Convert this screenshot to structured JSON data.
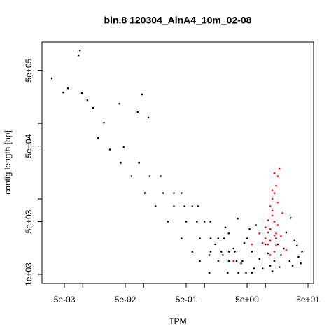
{
  "chart_data": {
    "type": "scatter",
    "title": "bin.8 120304_AlnA4_10m_02-08",
    "x_label": "TPM",
    "y_label": "contig length [bp]",
    "log_x": true,
    "log_y": true,
    "xlim": [
      0.00214,
      61.8
    ],
    "ylim": [
      758,
      1190000
    ],
    "xticks": [
      {
        "value": 0.005,
        "label": "5e-03"
      },
      {
        "value": 0.05,
        "label": "5e-02"
      },
      {
        "value": 0.5,
        "label": "5e-01"
      },
      {
        "value": 5,
        "label": "5e+00"
      },
      {
        "value": 50,
        "label": "5e+01"
      }
    ],
    "xminor_ticks": [
      0.01,
      0.1,
      1,
      10
    ],
    "yticks": [
      {
        "value": 1000,
        "label": "1e+03"
      },
      {
        "value": 5000,
        "label": "5e+03"
      },
      {
        "value": 50000,
        "label": "5e+04"
      },
      {
        "value": 500000,
        "label": "5e+05"
      }
    ],
    "yminor_ticks": [
      10000,
      100000
    ],
    "series": [
      {
        "color": "#000000",
        "x": [
          0.0031,
          0.009,
          0.0085,
          0.0057,
          0.0048,
          0.0097,
          0.0119,
          0.0148,
          0.0223,
          0.04,
          0.094,
          0.12,
          0.08,
          0.0179,
          0.047,
          1.2,
          0.84,
          0.63,
          0.42,
          0.25,
          0.157,
          0.105,
          0.063,
          0.042,
          0.028,
          2.4,
          1.68,
          1.26,
          0.84,
          0.5,
          0.314,
          0.21,
          0.126,
          0.084,
          3.6,
          2.52,
          1.89,
          1.26,
          0.75,
          0.47,
          0.315,
          0.19,
          4.8,
          3.36,
          2.52,
          1.68,
          1.0,
          0.63,
          0.42,
          6.0,
          4.2,
          3.15,
          2.1,
          1.25,
          0.785,
          1.5,
          2,
          2.5,
          3,
          4,
          5,
          6,
          7,
          8,
          10,
          12,
          15,
          18,
          20,
          25,
          30,
          35,
          40,
          3.5,
          2.2,
          9,
          14,
          16,
          22,
          28,
          1.2,
          4.5,
          6.5,
          11,
          33,
          38,
          5.5,
          26,
          13,
          17
        ],
        "y": [
          392000,
          918000,
          790000,
          290000,
          255000,
          250000,
          202000,
          160000,
          102000,
          181000,
          240000,
          119000,
          141000,
          64000,
          48400,
          1050,
          1500,
          2000,
          3000,
          5000,
          8000,
          12000,
          20000,
          30000,
          45000,
          1050,
          1500,
          2000,
          3000,
          5000,
          8000,
          12000,
          20000,
          30000,
          1050,
          1500,
          2000,
          3000,
          5000,
          8000,
          12000,
          20000,
          1050,
          1500,
          2000,
          3000,
          5000,
          8000,
          12000,
          1050,
          1500,
          2000,
          3000,
          5000,
          8000,
          2500,
          1800,
          3500,
          2200,
          1400,
          3000,
          2000,
          4500,
          1600,
          2500,
          1300,
          3000,
          1800,
          2200,
          1500,
          2800,
          1700,
          2000,
          5500,
          4200,
          1200,
          1500,
          2500,
          3600,
          1300,
          1800,
          2600,
          1200,
          1900,
          2400,
          1400,
          4000,
          5600,
          1100,
          1250
        ]
      },
      {
        "color": "#ff0000",
        "x": [
          10,
          12,
          14,
          11,
          13,
          15,
          12,
          13,
          14,
          15,
          16,
          14,
          17,
          13,
          11,
          16,
          12,
          14,
          18,
          10,
          9,
          15,
          16,
          13,
          12,
          19,
          8,
          14,
          3,
          6,
          22,
          11
        ],
        "y": [
          3000,
          4000,
          5000,
          2500,
          6000,
          3500,
          8000,
          10000,
          12000,
          15000,
          20000,
          22000,
          25000,
          7000,
          3600,
          4500,
          2800,
          2000,
          3200,
          4200,
          2600,
          2400,
          9000,
          13000,
          1800,
          6500,
          3500,
          3300,
          1500,
          2500,
          2100,
          5200
        ]
      }
    ]
  }
}
